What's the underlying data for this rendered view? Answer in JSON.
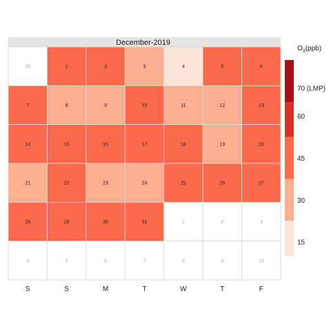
{
  "chart_data": {
    "type": "heatmap",
    "title": "December-2019",
    "legend_title": "O3(ppb)",
    "legend_placement": "right",
    "weekday_labels": [
      "S",
      "S",
      "M",
      "T",
      "W",
      "T",
      "F"
    ],
    "legend_ticks": [
      {
        "value": 15,
        "label": "15"
      },
      {
        "value": 30,
        "label": "30"
      },
      {
        "value": 45,
        "label": "45"
      },
      {
        "value": 60,
        "label": "60"
      },
      {
        "value": 70,
        "label": "70 (LMP)"
      }
    ],
    "legend_range": [
      10,
      80
    ],
    "bins": [
      {
        "min": 10,
        "max": 22.5,
        "color": "#fde5da"
      },
      {
        "min": 22.5,
        "max": 37.5,
        "color": "#fcae91"
      },
      {
        "min": 37.5,
        "max": 52.5,
        "color": "#fb6a4a"
      },
      {
        "min": 52.5,
        "max": 65,
        "color": "#de2d26"
      },
      {
        "min": 65,
        "max": 80,
        "color": "#a50f15"
      }
    ],
    "colors": {
      "header_bg": "#e3e3e3",
      "empty_cell": "#ffffff",
      "grid_line": "#d9d9d9",
      "in_month_text": "#222222",
      "out_month_text": "#aaaaaa"
    },
    "weeks": [
      [
        {
          "day": "30",
          "in_month": false,
          "o3": null
        },
        {
          "day": "1",
          "in_month": true,
          "o3": 45
        },
        {
          "day": "2",
          "in_month": true,
          "o3": 45
        },
        {
          "day": "3",
          "in_month": true,
          "o3": 30
        },
        {
          "day": "4",
          "in_month": true,
          "o3": 15
        },
        {
          "day": "5",
          "in_month": true,
          "o3": 45
        },
        {
          "day": "6",
          "in_month": true,
          "o3": 45
        }
      ],
      [
        {
          "day": "7",
          "in_month": true,
          "o3": 45
        },
        {
          "day": "8",
          "in_month": true,
          "o3": 30
        },
        {
          "day": "9",
          "in_month": true,
          "o3": 30
        },
        {
          "day": "10",
          "in_month": true,
          "o3": 45
        },
        {
          "day": "11",
          "in_month": true,
          "o3": 30
        },
        {
          "day": "12",
          "in_month": true,
          "o3": 30
        },
        {
          "day": "13",
          "in_month": true,
          "o3": 45
        }
      ],
      [
        {
          "day": "14",
          "in_month": true,
          "o3": 45
        },
        {
          "day": "15",
          "in_month": true,
          "o3": 45
        },
        {
          "day": "16",
          "in_month": true,
          "o3": 45
        },
        {
          "day": "17",
          "in_month": true,
          "o3": 45
        },
        {
          "day": "18",
          "in_month": true,
          "o3": 45
        },
        {
          "day": "19",
          "in_month": true,
          "o3": 30
        },
        {
          "day": "20",
          "in_month": true,
          "o3": 45
        }
      ],
      [
        {
          "day": "21",
          "in_month": true,
          "o3": 30
        },
        {
          "day": "22",
          "in_month": true,
          "o3": 45
        },
        {
          "day": "23",
          "in_month": true,
          "o3": 30
        },
        {
          "day": "24",
          "in_month": true,
          "o3": 30
        },
        {
          "day": "25",
          "in_month": true,
          "o3": 45
        },
        {
          "day": "26",
          "in_month": true,
          "o3": 45
        },
        {
          "day": "27",
          "in_month": true,
          "o3": 45
        }
      ],
      [
        {
          "day": "28",
          "in_month": true,
          "o3": 45
        },
        {
          "day": "29",
          "in_month": true,
          "o3": 45
        },
        {
          "day": "30",
          "in_month": true,
          "o3": 45
        },
        {
          "day": "31",
          "in_month": true,
          "o3": 45
        },
        {
          "day": "1",
          "in_month": false,
          "o3": null
        },
        {
          "day": "2",
          "in_month": false,
          "o3": null
        },
        {
          "day": "3",
          "in_month": false,
          "o3": null
        }
      ],
      [
        {
          "day": "4",
          "in_month": false,
          "o3": null
        },
        {
          "day": "5",
          "in_month": false,
          "o3": null
        },
        {
          "day": "6",
          "in_month": false,
          "o3": null
        },
        {
          "day": "7",
          "in_month": false,
          "o3": null
        },
        {
          "day": "8",
          "in_month": false,
          "o3": null
        },
        {
          "day": "9",
          "in_month": false,
          "o3": null
        },
        {
          "day": "10",
          "in_month": false,
          "o3": null
        }
      ]
    ]
  }
}
